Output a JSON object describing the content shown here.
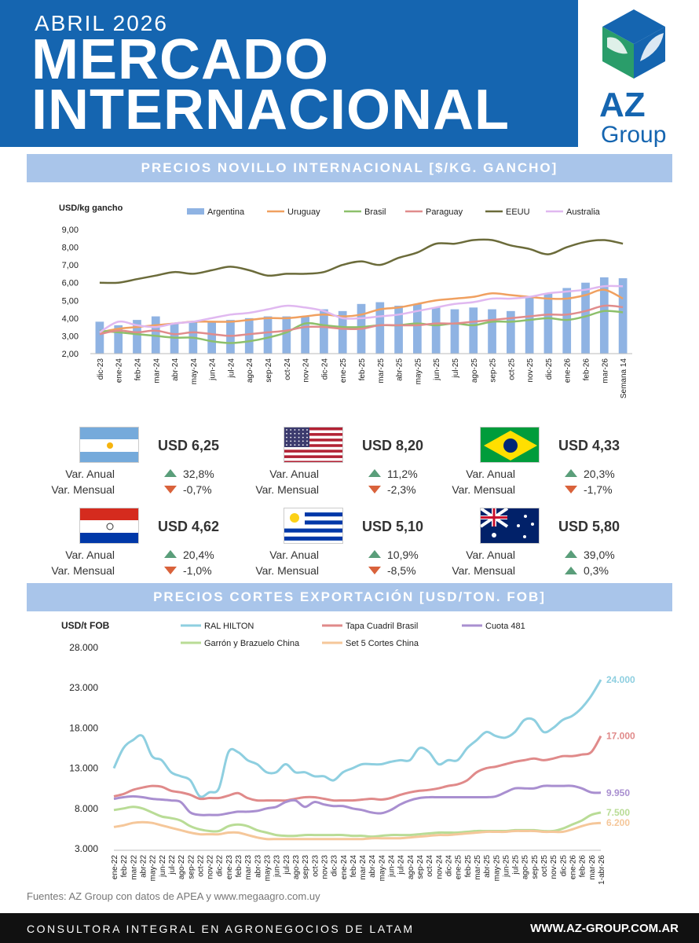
{
  "header": {
    "month": "ABRIL 2026",
    "title_line1": "MERCADO",
    "title_line2": "INTERNACIONAL",
    "logo_az": "AZ",
    "logo_group": "Group"
  },
  "section1": {
    "title": "PRECIOS NOVILLO INTERNACIONAL [$/KG. GANCHO]"
  },
  "section2": {
    "title": "PRECIOS CORTES EXPORTACIÓN [USD/TON. FOB]"
  },
  "cards": [
    {
      "country": "Argentina",
      "flag": "flag-argentina",
      "price": "USD 6,25",
      "anual_label": "Var. Anual",
      "anual": "32,8%",
      "anual_dir": "up",
      "mensual_label": "Var. Mensual",
      "mensual": "-0,7%",
      "mensual_dir": "down"
    },
    {
      "country": "EEUU",
      "flag": "flag-usa",
      "price": "USD 8,20",
      "anual_label": "Var. Anual",
      "anual": "11,2%",
      "anual_dir": "up",
      "mensual_label": "Var. Mensual",
      "mensual": "-2,3%",
      "mensual_dir": "down"
    },
    {
      "country": "Brasil",
      "flag": "flag-brazil",
      "price": "USD 4,33",
      "anual_label": "Var. Anual",
      "anual": "20,3%",
      "anual_dir": "up",
      "mensual_label": "Var. Mensual",
      "mensual": "-1,7%",
      "mensual_dir": "down"
    },
    {
      "country": "Paraguay",
      "flag": "flag-paraguay",
      "price": "USD 4,62",
      "anual_label": "Var. Anual",
      "anual": "20,4%",
      "anual_dir": "up",
      "mensual_label": "Var. Mensual",
      "mensual": "-1,0%",
      "mensual_dir": "down"
    },
    {
      "country": "Uruguay",
      "flag": "flag-uruguay",
      "price": "USD 5,10",
      "anual_label": "Var. Anual",
      "anual": "10,9%",
      "anual_dir": "up",
      "mensual_label": "Var. Mensual",
      "mensual": "-8,5%",
      "mensual_dir": "down"
    },
    {
      "country": "Australia",
      "flag": "flag-australia",
      "price": "USD 5,80",
      "anual_label": "Var. Anual",
      "anual": "39,0%",
      "anual_dir": "up",
      "mensual_label": "Var. Mensual",
      "mensual": "0,3%",
      "mensual_dir": "up"
    }
  ],
  "chart_data": [
    {
      "type": "bar+line",
      "ylabel": "USD/kg gancho",
      "ylim": [
        2,
        9
      ],
      "yticks": [
        "2,00",
        "3,00",
        "4,00",
        "5,00",
        "6,00",
        "7,00",
        "8,00",
        "9,00"
      ],
      "legend_placement": "top",
      "categories": [
        "dic-23",
        "ene-24",
        "feb-24",
        "mar-24",
        "abr-24",
        "may-24",
        "jun-24",
        "jul-24",
        "ago-24",
        "sep-24",
        "oct-24",
        "nov-24",
        "dic-24",
        "ene-25",
        "feb-25",
        "mar-25",
        "abr-25",
        "may-25",
        "jun-25",
        "jul-25",
        "ago-25",
        "sep-25",
        "oct-25",
        "nov-25",
        "dic-25",
        "ene-26",
        "feb-26",
        "mar-26",
        "Semana 14"
      ],
      "bar_series": {
        "name": "Argentina",
        "color": "#8fb3e3",
        "values": [
          3.8,
          3.6,
          3.9,
          4.1,
          3.7,
          3.8,
          3.8,
          3.9,
          4.0,
          4.1,
          4.1,
          4.1,
          4.5,
          4.4,
          4.8,
          4.9,
          4.7,
          4.8,
          4.6,
          4.5,
          4.6,
          4.5,
          4.4,
          5.2,
          5.4,
          5.7,
          6.0,
          6.3,
          6.25
        ]
      },
      "line_series": [
        {
          "name": "Uruguay",
          "color": "#f0a060",
          "values": [
            3.2,
            3.4,
            3.5,
            3.6,
            3.7,
            3.8,
            3.8,
            3.8,
            3.9,
            4.0,
            4.0,
            4.1,
            4.2,
            4.1,
            4.2,
            4.5,
            4.6,
            4.8,
            5.0,
            5.1,
            5.2,
            5.4,
            5.3,
            5.2,
            5.1,
            5.1,
            5.3,
            5.6,
            5.1
          ]
        },
        {
          "name": "Brasil",
          "color": "#8dc06b",
          "values": [
            3.3,
            3.2,
            3.1,
            3.0,
            2.9,
            2.9,
            2.7,
            2.6,
            2.7,
            2.9,
            3.2,
            3.7,
            3.6,
            3.5,
            3.5,
            3.6,
            3.6,
            3.7,
            3.6,
            3.7,
            3.6,
            3.8,
            3.8,
            3.9,
            4.0,
            3.9,
            4.1,
            4.4,
            4.33
          ]
        },
        {
          "name": "Paraguay",
          "color": "#e08c8c",
          "values": [
            3.1,
            3.3,
            3.2,
            3.3,
            3.1,
            3.2,
            3.1,
            3.0,
            3.1,
            3.2,
            3.3,
            3.5,
            3.5,
            3.4,
            3.4,
            3.6,
            3.6,
            3.6,
            3.7,
            3.7,
            3.8,
            3.9,
            4.0,
            4.1,
            4.2,
            4.2,
            4.4,
            4.7,
            4.62
          ]
        },
        {
          "name": "EEUU",
          "color": "#6b6b3a",
          "values": [
            6.0,
            6.0,
            6.2,
            6.4,
            6.6,
            6.5,
            6.7,
            6.9,
            6.7,
            6.4,
            6.5,
            6.5,
            6.6,
            7.0,
            7.2,
            7.0,
            7.4,
            7.7,
            8.2,
            8.2,
            8.4,
            8.4,
            8.1,
            7.9,
            7.6,
            8.0,
            8.3,
            8.4,
            8.2
          ]
        },
        {
          "name": "Australia",
          "color": "#e0b8f0",
          "values": [
            3.2,
            3.8,
            3.6,
            3.5,
            3.7,
            3.8,
            4.0,
            4.2,
            4.3,
            4.5,
            4.7,
            4.6,
            4.4,
            4.0,
            4.0,
            4.1,
            4.2,
            4.4,
            4.6,
            4.8,
            4.9,
            5.1,
            5.1,
            5.2,
            5.4,
            5.5,
            5.6,
            5.8,
            5.8
          ]
        }
      ]
    },
    {
      "type": "line",
      "ylabel": "USD/t FOB",
      "ylim": [
        3000,
        28000
      ],
      "yticks": [
        "3.000",
        "8.000",
        "13.000",
        "18.000",
        "23.000",
        "28.000"
      ],
      "legend_placement": "top",
      "categories": [
        "ene-22",
        "feb-22",
        "mar-22",
        "abr-22",
        "may-22",
        "jun-22",
        "jul-22",
        "ago-22",
        "sep-22",
        "oct-22",
        "nov-22",
        "dic-22",
        "ene-23",
        "feb-23",
        "mar-23",
        "abr-23",
        "may-23",
        "jun-23",
        "jul-23",
        "ago-23",
        "sep-23",
        "oct-23",
        "nov-23",
        "dic-23",
        "ene-24",
        "feb-24",
        "mar-24",
        "abr-24",
        "may-24",
        "jun-24",
        "jul-24",
        "ago-24",
        "sep-24",
        "oct-24",
        "nov-24",
        "dic-24",
        "ene-25",
        "feb-25",
        "mar-25",
        "abr-25",
        "may-25",
        "jun-25",
        "jul-25",
        "ago-25",
        "sep-25",
        "oct-25",
        "nov-25",
        "dic-25",
        "ene-26",
        "feb-26",
        "mar-26",
        "1-abr-26"
      ],
      "series": [
        {
          "name": "RAL HILTON",
          "color": "#8ecfe0",
          "end_label": "24.000",
          "values": [
            13000,
            15500,
            16500,
            17000,
            14500,
            14000,
            12500,
            12000,
            11500,
            9500,
            10000,
            10500,
            15000,
            15000,
            14000,
            13500,
            12500,
            12500,
            13500,
            12500,
            12500,
            12000,
            12000,
            11500,
            12500,
            13000,
            13500,
            13500,
            13500,
            13800,
            14000,
            14000,
            15500,
            15000,
            13500,
            14000,
            14000,
            15500,
            16500,
            17500,
            17000,
            16800,
            17500,
            19000,
            19000,
            17500,
            18000,
            19000,
            19500,
            20500,
            22000,
            24000
          ]
        },
        {
          "name": "Tapa Cuadril Brasil",
          "color": "#e08a8a",
          "end_label": "17.000",
          "values": [
            9500,
            9800,
            10300,
            10600,
            10800,
            10700,
            10200,
            10000,
            9700,
            9200,
            9300,
            9300,
            9600,
            9900,
            9300,
            9000,
            9000,
            9000,
            9000,
            9200,
            9400,
            9400,
            9200,
            9000,
            9000,
            9000,
            9100,
            9200,
            9100,
            9300,
            9700,
            10000,
            10200,
            10300,
            10500,
            10800,
            11000,
            11500,
            12500,
            13000,
            13200,
            13500,
            13800,
            14000,
            14200,
            14000,
            14200,
            14500,
            14500,
            14700,
            15000,
            17000
          ]
        },
        {
          "name": "Cuota 481",
          "color": "#a98fd0",
          "end_label": "9.950",
          "values": [
            9200,
            9400,
            9500,
            9400,
            9200,
            9100,
            9000,
            8800,
            7500,
            7200,
            7200,
            7200,
            7400,
            7600,
            7600,
            7700,
            8000,
            8200,
            8800,
            9000,
            8200,
            8800,
            8500,
            8300,
            8300,
            8000,
            7800,
            7500,
            7400,
            7800,
            8500,
            9000,
            9300,
            9400,
            9400,
            9400,
            9400,
            9400,
            9400,
            9400,
            9500,
            10000,
            10500,
            10500,
            10500,
            10800,
            10800,
            10800,
            10800,
            10500,
            10000,
            9950
          ]
        },
        {
          "name": "Garrón y Brazuelo China",
          "color": "#b9dc96",
          "end_label": "7.500",
          "values": [
            7800,
            8000,
            8200,
            8000,
            7500,
            7000,
            6800,
            6500,
            5800,
            5400,
            5200,
            5200,
            5800,
            6000,
            5800,
            5300,
            5000,
            4700,
            4600,
            4600,
            4700,
            4700,
            4700,
            4700,
            4700,
            4600,
            4600,
            4500,
            4600,
            4700,
            4700,
            4700,
            4800,
            4900,
            5000,
            5000,
            5000,
            5100,
            5200,
            5200,
            5200,
            5200,
            5300,
            5300,
            5300,
            5200,
            5200,
            5500,
            6000,
            6500,
            7200,
            7500
          ]
        },
        {
          "name": "Set 5 Cortes China",
          "color": "#f5c79a",
          "end_label": "6.200",
          "values": [
            5700,
            5900,
            6200,
            6300,
            6200,
            5900,
            5600,
            5300,
            5000,
            4800,
            4800,
            4800,
            5000,
            5000,
            4700,
            4400,
            4200,
            4200,
            4200,
            4200,
            4200,
            4200,
            4200,
            4200,
            4200,
            4200,
            4200,
            4300,
            4300,
            4300,
            4300,
            4400,
            4500,
            4600,
            4700,
            4700,
            4800,
            4900,
            5000,
            5100,
            5100,
            5100,
            5200,
            5200,
            5200,
            5100,
            5100,
            5100,
            5400,
            5800,
            6100,
            6200
          ]
        }
      ]
    }
  ],
  "sources": "Fuentes: AZ Group con datos de APEA y www.megaagro.com.uy",
  "footer": {
    "left": "CONSULTORA INTEGRAL EN AGRONEGOCIOS DE LATAM",
    "right": "WWW.AZ-GROUP.COM.AR"
  }
}
